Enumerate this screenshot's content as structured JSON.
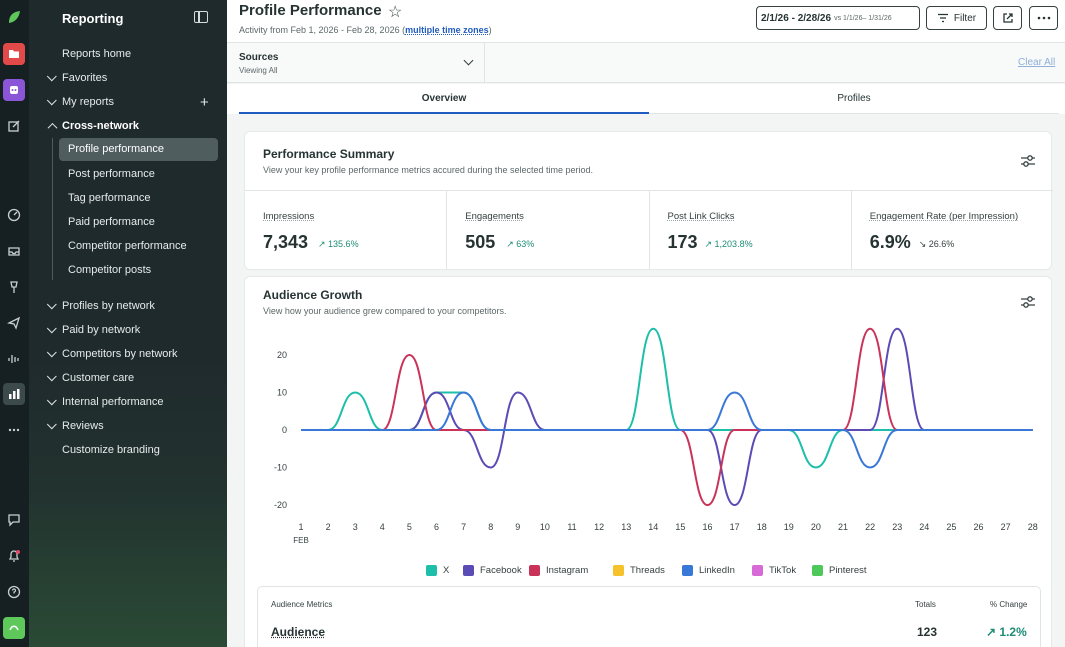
{
  "nav": {
    "title": "Reporting",
    "reports_home": "Reports home",
    "sections": [
      "Favorites",
      "My reports",
      "Cross-network"
    ],
    "cross_network_items": [
      "Profile performance",
      "Post performance",
      "Tag performance",
      "Paid performance",
      "Competitor performance",
      "Competitor posts"
    ],
    "lower_sections": [
      "Profiles by network",
      "Paid by network",
      "Competitors by network",
      "Customer care",
      "Internal performance",
      "Reviews"
    ],
    "customize": "Customize branding"
  },
  "header": {
    "title": "Profile Performance",
    "activity_prefix": "Activity from Feb 1, 2026 - Feb 28, 2026 (",
    "activity_link": "multiple time zones",
    "activity_suffix": ")",
    "date_range": "2/1/26 - 2/28/26",
    "compare_range": "vs 1/1/26– 1/31/26",
    "filter_label": "Filter"
  },
  "sources": {
    "label": "Sources",
    "value": "Viewing All",
    "clear": "Clear All"
  },
  "tabs": [
    "Overview",
    "Profiles"
  ],
  "performance": {
    "title": "Performance Summary",
    "subtitle": "View your key profile performance metrics accured during the selected time period.",
    "metrics": [
      {
        "label": "Impressions",
        "value": "7,343",
        "change": "↗ 135.6%",
        "dir": "up"
      },
      {
        "label": "Engagements",
        "value": "505",
        "change": "↗ 63%",
        "dir": "up"
      },
      {
        "label": "Post Link Clicks",
        "value": "173",
        "change": "↗ 1,203.8%",
        "dir": "up"
      },
      {
        "label": "Engagement Rate (per Impression)",
        "value": "6.9%",
        "change": "↘ 26.6%",
        "dir": "down"
      }
    ]
  },
  "audience": {
    "title": "Audience Growth",
    "subtitle": "View how your audience grew compared to your competitors.",
    "table": {
      "header_metric": "Audience Metrics",
      "header_total": "Totals",
      "header_change": "% Change",
      "row_label": "Audience",
      "row_total": "123",
      "row_change": "↗ 1.2%"
    }
  },
  "chart_data": {
    "type": "line",
    "x": [
      1,
      2,
      3,
      4,
      5,
      6,
      7,
      8,
      9,
      10,
      11,
      12,
      13,
      14,
      15,
      16,
      17,
      18,
      19,
      20,
      21,
      22,
      23,
      24,
      25,
      26,
      27,
      28
    ],
    "x_month_label": "FEB",
    "ylim": [
      -20,
      25
    ],
    "yticks": [
      20,
      10,
      0,
      -10,
      -20
    ],
    "grid": false,
    "legend_position": "bottom",
    "series": [
      {
        "name": "X",
        "color": "#1dbfaa",
        "values": [
          0,
          0,
          10,
          0,
          0,
          10,
          10,
          0,
          0,
          0,
          0,
          0,
          0,
          27,
          0,
          0,
          0,
          0,
          0,
          -10,
          0,
          0,
          0,
          0,
          0,
          0,
          0,
          0
        ]
      },
      {
        "name": "Facebook",
        "color": "#5b4bb5",
        "values": [
          0,
          0,
          0,
          0,
          0,
          10,
          0,
          -10,
          10,
          0,
          0,
          0,
          0,
          0,
          0,
          0,
          -20,
          0,
          0,
          0,
          0,
          0,
          27,
          0,
          0,
          0,
          0,
          0
        ]
      },
      {
        "name": "Instagram",
        "color": "#c9335a",
        "values": [
          0,
          0,
          0,
          0,
          20,
          0,
          0,
          0,
          0,
          0,
          0,
          0,
          0,
          0,
          0,
          -20,
          0,
          0,
          0,
          0,
          0,
          27,
          0,
          0,
          0,
          0,
          0,
          0
        ]
      },
      {
        "name": "Threads",
        "color": "#f6c22b",
        "values": [
          0,
          0,
          0,
          0,
          0,
          0,
          0,
          0,
          0,
          0,
          0,
          0,
          0,
          0,
          0,
          0,
          0,
          0,
          0,
          0,
          0,
          0,
          0,
          0,
          0,
          0,
          0,
          0
        ]
      },
      {
        "name": "LinkedIn",
        "color": "#3a78d8",
        "values": [
          0,
          0,
          0,
          0,
          0,
          0,
          10,
          0,
          0,
          0,
          0,
          0,
          0,
          0,
          0,
          0,
          10,
          0,
          0,
          0,
          0,
          -10,
          0,
          0,
          0,
          0,
          0,
          0
        ]
      },
      {
        "name": "TikTok",
        "color": "#d86ad8",
        "values": [
          0,
          0,
          0,
          0,
          0,
          0,
          0,
          0,
          0,
          0,
          0,
          0,
          0,
          0,
          0,
          0,
          0,
          0,
          0,
          0,
          0,
          0,
          0,
          0,
          0,
          0,
          0,
          0
        ]
      },
      {
        "name": "Pinterest",
        "color": "#4fc85a",
        "values": [
          0,
          0,
          0,
          0,
          0,
          0,
          0,
          0,
          0,
          0,
          0,
          0,
          0,
          0,
          0,
          0,
          0,
          0,
          0,
          0,
          0,
          0,
          0,
          0,
          0,
          0,
          0,
          0
        ]
      }
    ]
  },
  "colors": {
    "accent": "#205bc0",
    "positive": "#1e8c76",
    "rail": "#162022",
    "nav": "#1f2a2c"
  }
}
